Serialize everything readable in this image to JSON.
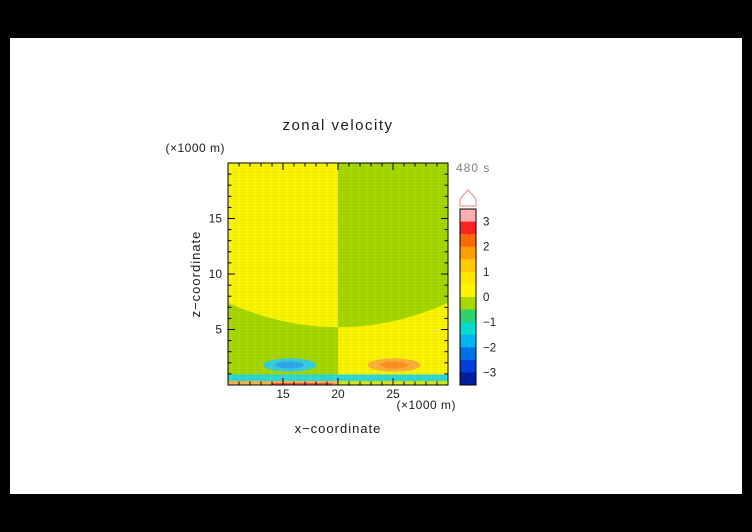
{
  "page": {
    "background": "#000000",
    "panel_background": "#ffffff"
  },
  "chart_data": {
    "type": "heatmap",
    "title": "zonal velocity",
    "time_label": "480 s",
    "xlabel": "x−coordinate",
    "ylabel": "z−coordinate",
    "x_axis_units": "(×1000 m)",
    "z_axis_units": "(×1000 m)",
    "x_range": [
      10,
      30
    ],
    "z_range": [
      0,
      20
    ],
    "x_ticks": [
      15,
      20,
      25
    ],
    "z_ticks": [
      5,
      10,
      15
    ],
    "minor_tick_step": 1,
    "grid": "fine horizontal model-level texture",
    "legend_position": "right colorbar",
    "colorbar": {
      "label_values": [
        3,
        2,
        1,
        0,
        -1,
        -2,
        -3
      ],
      "over_cap_fill": "#ffffff",
      "over_cap_stroke": "#f29c9c",
      "segments": [
        {
          "from": 3.0,
          "to": 3.5,
          "color": "#ffaeae"
        },
        {
          "from": 2.5,
          "to": 3.0,
          "color": "#ff2222"
        },
        {
          "from": 2.0,
          "to": 2.5,
          "color": "#ff6a00"
        },
        {
          "from": 1.5,
          "to": 2.0,
          "color": "#ff9e00"
        },
        {
          "from": 1.0,
          "to": 1.5,
          "color": "#ffc800"
        },
        {
          "from": 0.5,
          "to": 1.0,
          "color": "#ffe800"
        },
        {
          "from": 0.0,
          "to": 0.5,
          "color": "#fbf600"
        },
        {
          "from": -0.5,
          "to": 0.0,
          "color": "#a6d800"
        },
        {
          "from": -1.0,
          "to": -0.5,
          "color": "#2fd06e"
        },
        {
          "from": -1.5,
          "to": -1.0,
          "color": "#00dcd0"
        },
        {
          "from": -2.0,
          "to": -1.5,
          "color": "#00b4f0"
        },
        {
          "from": -2.5,
          "to": -2.0,
          "color": "#0072e8"
        },
        {
          "from": -3.0,
          "to": -2.5,
          "color": "#0040d8"
        },
        {
          "from": -3.5,
          "to": -3.0,
          "color": "#001e9e"
        }
      ]
    },
    "field": {
      "description": "weak positive (yellow, 0 to 0.5) zonal wind over left half aloft and negative (green, -0.5 to 0) over right half; polarity reversed below a curved interface; wave extrema near the surface",
      "upper_left_color": "#fbf600",
      "upper_right_color": "#a6d800",
      "lower_left_color": "#a6d800",
      "lower_right_color": "#fbf600",
      "interface": {
        "z_at_edges": 7.4,
        "z_at_center": 5.2
      },
      "bands": [
        {
          "x": [
            10,
            30
          ],
          "z": [
            0.35,
            0.95
          ],
          "color": "#2fd8d8",
          "value": -1.2
        },
        {
          "x": [
            10,
            20
          ],
          "z": [
            0.0,
            0.35
          ],
          "color": "#ffb347",
          "value": 1.3
        },
        {
          "x": [
            20,
            30
          ],
          "z": [
            0.0,
            0.35
          ],
          "color": "#dde600",
          "value": 0.2
        },
        {
          "x": [
            14,
            19.5
          ],
          "z": [
            0.0,
            0.18
          ],
          "color": "#ff5533",
          "value": 2.2
        }
      ],
      "features": [
        {
          "shape": "ellipse",
          "cx": 15.6,
          "cz": 1.8,
          "rx": 2.4,
          "rz": 0.6,
          "color": "#35cfe0",
          "value": -1.2
        },
        {
          "shape": "ellipse",
          "cx": 15.6,
          "cz": 1.8,
          "rx": 1.3,
          "rz": 0.32,
          "color": "#2fa8f0",
          "value": -1.7
        },
        {
          "shape": "ellipse",
          "cx": 25.1,
          "cz": 1.8,
          "rx": 2.4,
          "rz": 0.6,
          "color": "#ffb038",
          "value": 1.2
        },
        {
          "shape": "ellipse",
          "cx": 25.1,
          "cz": 1.8,
          "rx": 1.3,
          "rz": 0.32,
          "color": "#ff9020",
          "value": 1.7
        }
      ]
    }
  }
}
